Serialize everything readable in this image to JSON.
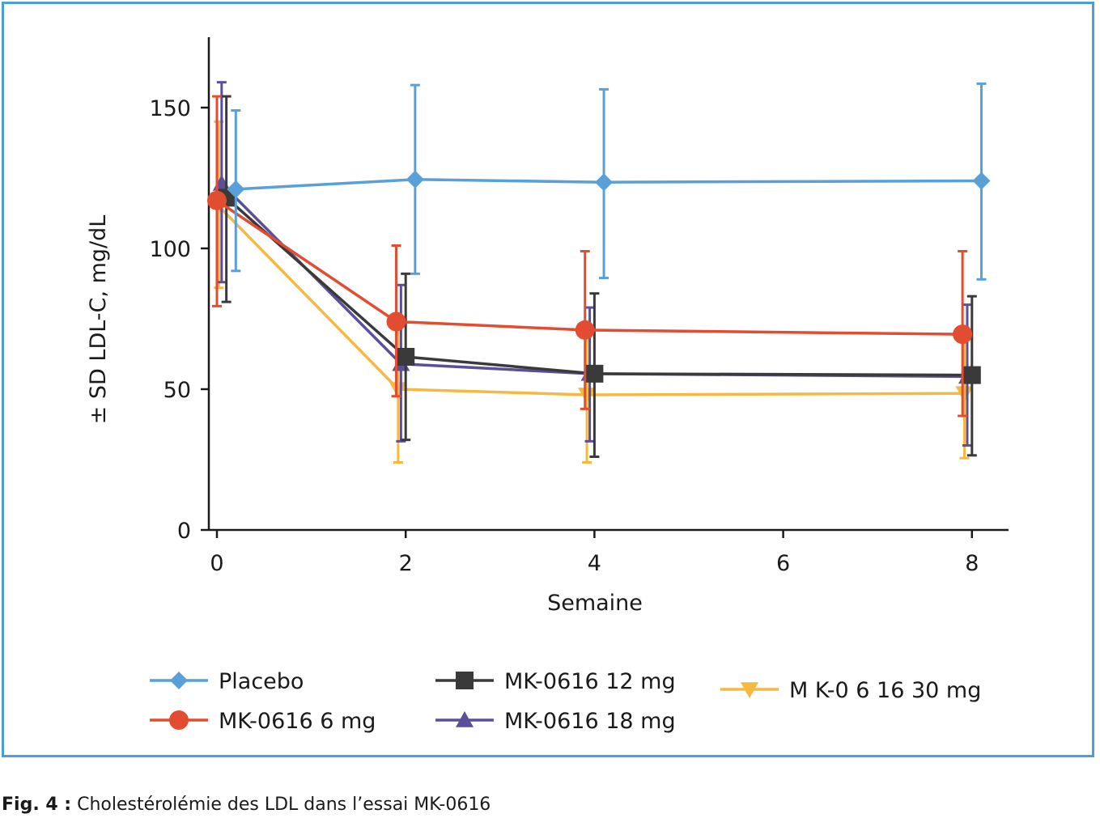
{
  "caption": {
    "label": "Fig. 4 :",
    "text": "Cholestérolémie des LDL dans l’essai MK-0616"
  },
  "chart_data": {
    "type": "line",
    "title": "",
    "xlabel": "Semaine",
    "ylabel": "± SD LDL-C, mg/dL",
    "xlim": [
      0,
      8.4
    ],
    "ylim": [
      0,
      175
    ],
    "xticks": [
      0,
      2,
      4,
      6,
      8
    ],
    "yticks": [
      0,
      50,
      100,
      150
    ],
    "grid": false,
    "legend_position": "bottom",
    "series": [
      {
        "name": "Placebo",
        "color": "#5aa0d8",
        "marker": "diamond",
        "x": [
          0.2,
          2.1,
          4.1,
          8.1
        ],
        "y": [
          121,
          124.5,
          123.5,
          124
        ],
        "yerr_low": [
          92,
          91,
          89.5,
          89
        ],
        "yerr_high": [
          149,
          158,
          156.5,
          158.5
        ]
      },
      {
        "name": "MK-0616 6 mg",
        "color": "#e24c30",
        "marker": "circle",
        "x": [
          0.0,
          1.9,
          3.9,
          7.9
        ],
        "y": [
          117,
          74,
          71,
          69.5
        ],
        "yerr_low": [
          79.5,
          47.5,
          43,
          40.5
        ],
        "yerr_high": [
          154,
          101,
          99,
          99
        ]
      },
      {
        "name": "MK-0616 12 mg",
        "color": "#3a3a3a",
        "marker": "square",
        "x": [
          0.1,
          2.0,
          4.0,
          8.0
        ],
        "y": [
          118,
          61.5,
          55.5,
          55
        ],
        "yerr_low": [
          81,
          32,
          26,
          26.5
        ],
        "yerr_high": [
          154,
          91,
          84,
          83
        ]
      },
      {
        "name": "MK-0616 18 mg",
        "color": "#5b4f9a",
        "marker": "triangle-up",
        "x": [
          0.05,
          1.95,
          3.95,
          7.95
        ],
        "y": [
          123,
          59,
          55.5,
          54.5
        ],
        "yerr_low": [
          88,
          31.5,
          31.5,
          30
        ],
        "yerr_high": [
          159,
          87,
          79,
          80
        ]
      },
      {
        "name": "MK-0616 30 mg",
        "color": "#f5b942",
        "marker": "triangle-down",
        "x": [
          0.02,
          1.92,
          3.92,
          7.92
        ],
        "y": [
          115,
          50,
          48,
          48.5
        ],
        "yerr_low": [
          86,
          24,
          24,
          25.5
        ],
        "yerr_high": [
          145,
          76,
          72,
          72
        ]
      }
    ],
    "legend": [
      {
        "label": "Placebo"
      },
      {
        "label": "MK-0616 6 mg"
      },
      {
        "label": "MK-0616 12 mg"
      },
      {
        "label": "MK-0616 18 mg"
      },
      {
        "label": "M K-0 6 16  30  mg"
      }
    ]
  }
}
